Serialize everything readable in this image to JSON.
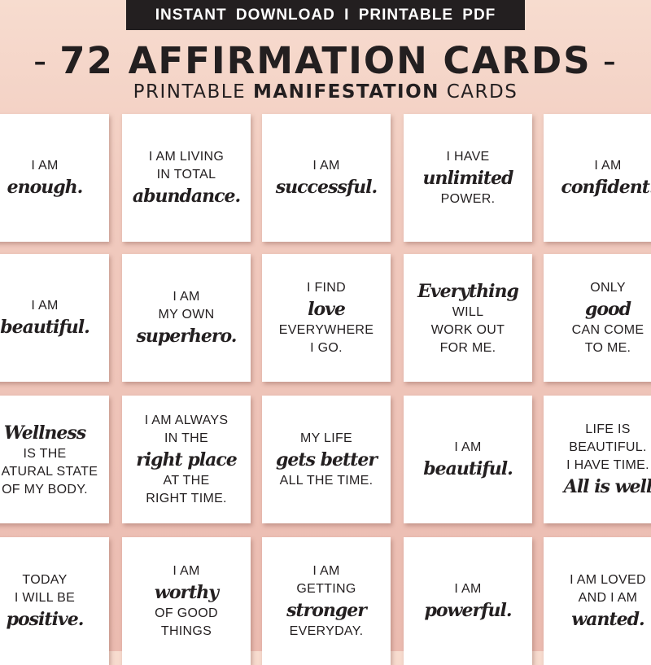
{
  "header": {
    "banner": "INSTANT  DOWNLOAD  I  PRINTABLE  PDF",
    "title": "72 AFFIRMATION CARDS",
    "title_dash": "-",
    "subtitle_pre": "PRINTABLE ",
    "subtitle_bold": "MANIFESTATION",
    "subtitle_post": " CARDS"
  },
  "colors": {
    "background": "#f1cbbf",
    "banner": "#231f20",
    "card": "#ffffff",
    "text": "#231f20"
  },
  "cards": [
    [
      {
        "t": "I AM",
        "s": "sans"
      },
      {
        "t": "enough.",
        "s": "script"
      }
    ],
    [
      {
        "t": "I AM LIVING",
        "s": "sans"
      },
      {
        "t": "IN TOTAL",
        "s": "sans"
      },
      {
        "t": "abundance.",
        "s": "script"
      }
    ],
    [
      {
        "t": "I AM",
        "s": "sans"
      },
      {
        "t": "successful.",
        "s": "script"
      }
    ],
    [
      {
        "t": "I HAVE",
        "s": "sans"
      },
      {
        "t": "unlimited",
        "s": "script"
      },
      {
        "t": "POWER.",
        "s": "sans"
      }
    ],
    [
      {
        "t": "I AM",
        "s": "sans"
      },
      {
        "t": "confident.",
        "s": "script"
      }
    ],
    [
      {
        "t": "I AM",
        "s": "sans"
      },
      {
        "t": "beautiful.",
        "s": "script"
      }
    ],
    [
      {
        "t": "I AM",
        "s": "sans"
      },
      {
        "t": "MY OWN",
        "s": "sans"
      },
      {
        "t": "superhero.",
        "s": "script"
      }
    ],
    [
      {
        "t": "I FIND",
        "s": "sans"
      },
      {
        "t": "love",
        "s": "script"
      },
      {
        "t": "EVERYWHERE",
        "s": "sans"
      },
      {
        "t": "I GO.",
        "s": "sans"
      }
    ],
    [
      {
        "t": "Everything",
        "s": "script"
      },
      {
        "t": "WILL",
        "s": "sans"
      },
      {
        "t": "WORK OUT",
        "s": "sans"
      },
      {
        "t": "FOR ME.",
        "s": "sans"
      }
    ],
    [
      {
        "t": "ONLY",
        "s": "sans"
      },
      {
        "t": "good",
        "s": "script"
      },
      {
        "t": "CAN COME",
        "s": "sans"
      },
      {
        "t": "TO ME.",
        "s": "sans"
      }
    ],
    [
      {
        "t": "Wellness",
        "s": "script"
      },
      {
        "t": "IS THE",
        "s": "sans"
      },
      {
        "t": "NATURAL STATE",
        "s": "sans"
      },
      {
        "t": "OF MY BODY.",
        "s": "sans"
      }
    ],
    [
      {
        "t": "I AM ALWAYS",
        "s": "sans"
      },
      {
        "t": "IN THE",
        "s": "sans"
      },
      {
        "t": "right place",
        "s": "script"
      },
      {
        "t": "AT THE",
        "s": "sans"
      },
      {
        "t": "RIGHT TIME.",
        "s": "sans"
      }
    ],
    [
      {
        "t": "MY LIFE",
        "s": "sans"
      },
      {
        "t": "gets better",
        "s": "script"
      },
      {
        "t": "ALL THE TIME.",
        "s": "sans"
      }
    ],
    [
      {
        "t": "I AM",
        "s": "sans"
      },
      {
        "t": "beautiful.",
        "s": "script"
      }
    ],
    [
      {
        "t": "LIFE IS",
        "s": "sans"
      },
      {
        "t": "BEAUTIFUL.",
        "s": "sans"
      },
      {
        "t": "I HAVE TIME.",
        "s": "sans"
      },
      {
        "t": "All is well",
        "s": "script"
      }
    ],
    [
      {
        "t": "TODAY",
        "s": "sans"
      },
      {
        "t": "I WILL BE",
        "s": "sans"
      },
      {
        "t": "positive.",
        "s": "script"
      }
    ],
    [
      {
        "t": "I AM",
        "s": "sans"
      },
      {
        "t": "worthy",
        "s": "script"
      },
      {
        "t": "OF GOOD",
        "s": "sans"
      },
      {
        "t": "THINGS",
        "s": "sans"
      }
    ],
    [
      {
        "t": "I AM",
        "s": "sans"
      },
      {
        "t": "GETTING",
        "s": "sans"
      },
      {
        "t": "stronger",
        "s": "script"
      },
      {
        "t": "EVERYDAY.",
        "s": "sans"
      }
    ],
    [
      {
        "t": "I AM",
        "s": "sans"
      },
      {
        "t": "powerful.",
        "s": "script"
      }
    ],
    [
      {
        "t": "I AM LOVED",
        "s": "sans"
      },
      {
        "t": "AND I AM",
        "s": "sans"
      },
      {
        "t": "wanted.",
        "s": "script"
      }
    ]
  ]
}
